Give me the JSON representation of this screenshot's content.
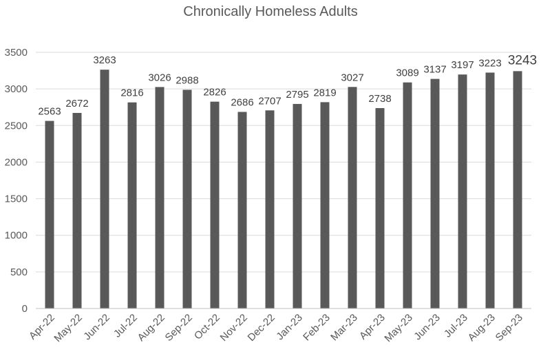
{
  "chart_data": {
    "type": "bar",
    "title": "Chronically Homeless Adults",
    "categories": [
      "Apr-22",
      "May-22",
      "Jun-22",
      "Jul-22",
      "Aug-22",
      "Sep-22",
      "Oct-22",
      "Nov-22",
      "Dec-22",
      "Jan-23",
      "Feb-23",
      "Mar-23",
      "Apr-23",
      "May-23",
      "Jun-23",
      "Jul-23",
      "Aug-23",
      "Sep-23"
    ],
    "values": [
      2563,
      2672,
      3263,
      2816,
      3026,
      2988,
      2826,
      2686,
      2707,
      2795,
      2819,
      3027,
      2738,
      3089,
      3137,
      3197,
      3223,
      3243
    ],
    "xlabel": "",
    "ylabel": "",
    "ylim": [
      0,
      3500
    ],
    "yticks": [
      0,
      500,
      1000,
      1500,
      2000,
      2500,
      3000,
      3500
    ],
    "grid": true,
    "legend": "none",
    "colors": {
      "bar": "#595959",
      "grid": "#d9d9d9",
      "axis": "#bfbfbf"
    }
  }
}
